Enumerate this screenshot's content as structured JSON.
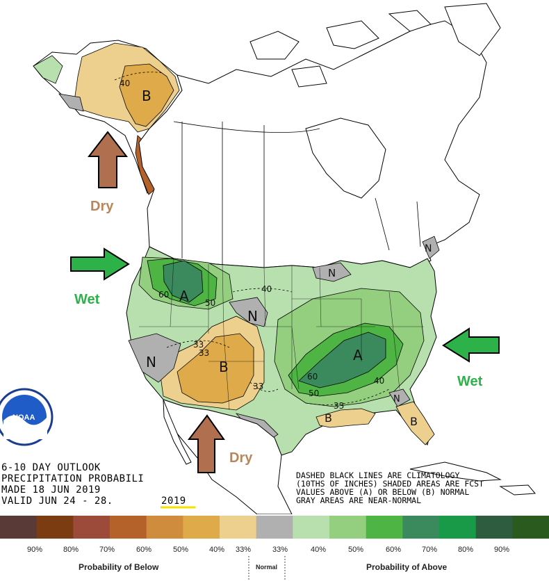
{
  "map": {
    "arrows": {
      "alaska_label": "Dry",
      "west_label": "Wet",
      "southwest_label": "Dry",
      "east_label": "Wet"
    },
    "regions": {
      "alaska": "B",
      "northwest": "A",
      "southwest": "B",
      "central": "A",
      "gulf": "B",
      "florida": "B",
      "nevada": "N",
      "plains": "N",
      "lakes": "N",
      "maine": "N",
      "alabama": "N"
    },
    "contours": {
      "ak40": "40",
      "nw60": "60",
      "nw50": "50",
      "n40": "40",
      "sw33a": "33",
      "sw33b": "33",
      "sw33c": "33",
      "c60": "60",
      "c50": "50",
      "c40": "40",
      "g33": "33"
    },
    "colors": {
      "dry_arrow": "#b07050",
      "wet_arrow": "#2db24a",
      "dry_text": "#b8865a",
      "wet_text": "#2db24a"
    }
  },
  "outlook": {
    "line1": "6-10 DAY OUTLOOK",
    "line2": "PRECIPITATION PROBABILI",
    "line3": "MADE   18 JUN 2019",
    "line4": "VALID  JUN 24 - 28.",
    "year": "2019"
  },
  "note": {
    "line1": "DASHED BLACK LINES ARE CLIMATOLOGY",
    "line2": "(10THS OF INCHES) SHADED AREAS ARE FCST",
    "line3": "VALUES ABOVE (A) OR BELOW (B) NORMAL",
    "line4": "GRAY AREAS ARE NEAR-NORMAL"
  },
  "legend": {
    "swatch_colors": [
      "#5a3a36",
      "#7a3c10",
      "#9c4a3a",
      "#b4612a",
      "#cf8c3c",
      "#deaa4a",
      "#eed08e",
      "#b0b0b0",
      "#b8e0ae",
      "#94cf80",
      "#4eb443",
      "#3a8a5e",
      "#199a48",
      "#2e5c3e",
      "#2a5a1e"
    ],
    "below_pcts": [
      "90%",
      "80%",
      "70%",
      "60%",
      "50%",
      "40%",
      "33%"
    ],
    "above_pcts": [
      "33%",
      "40%",
      "50%",
      "60%",
      "70%",
      "80%",
      "90%"
    ],
    "below_caption": "Probability of Below",
    "normal_caption": "Normal",
    "above_caption": "Probability of Above"
  },
  "logo": {
    "text": "NOAA"
  }
}
